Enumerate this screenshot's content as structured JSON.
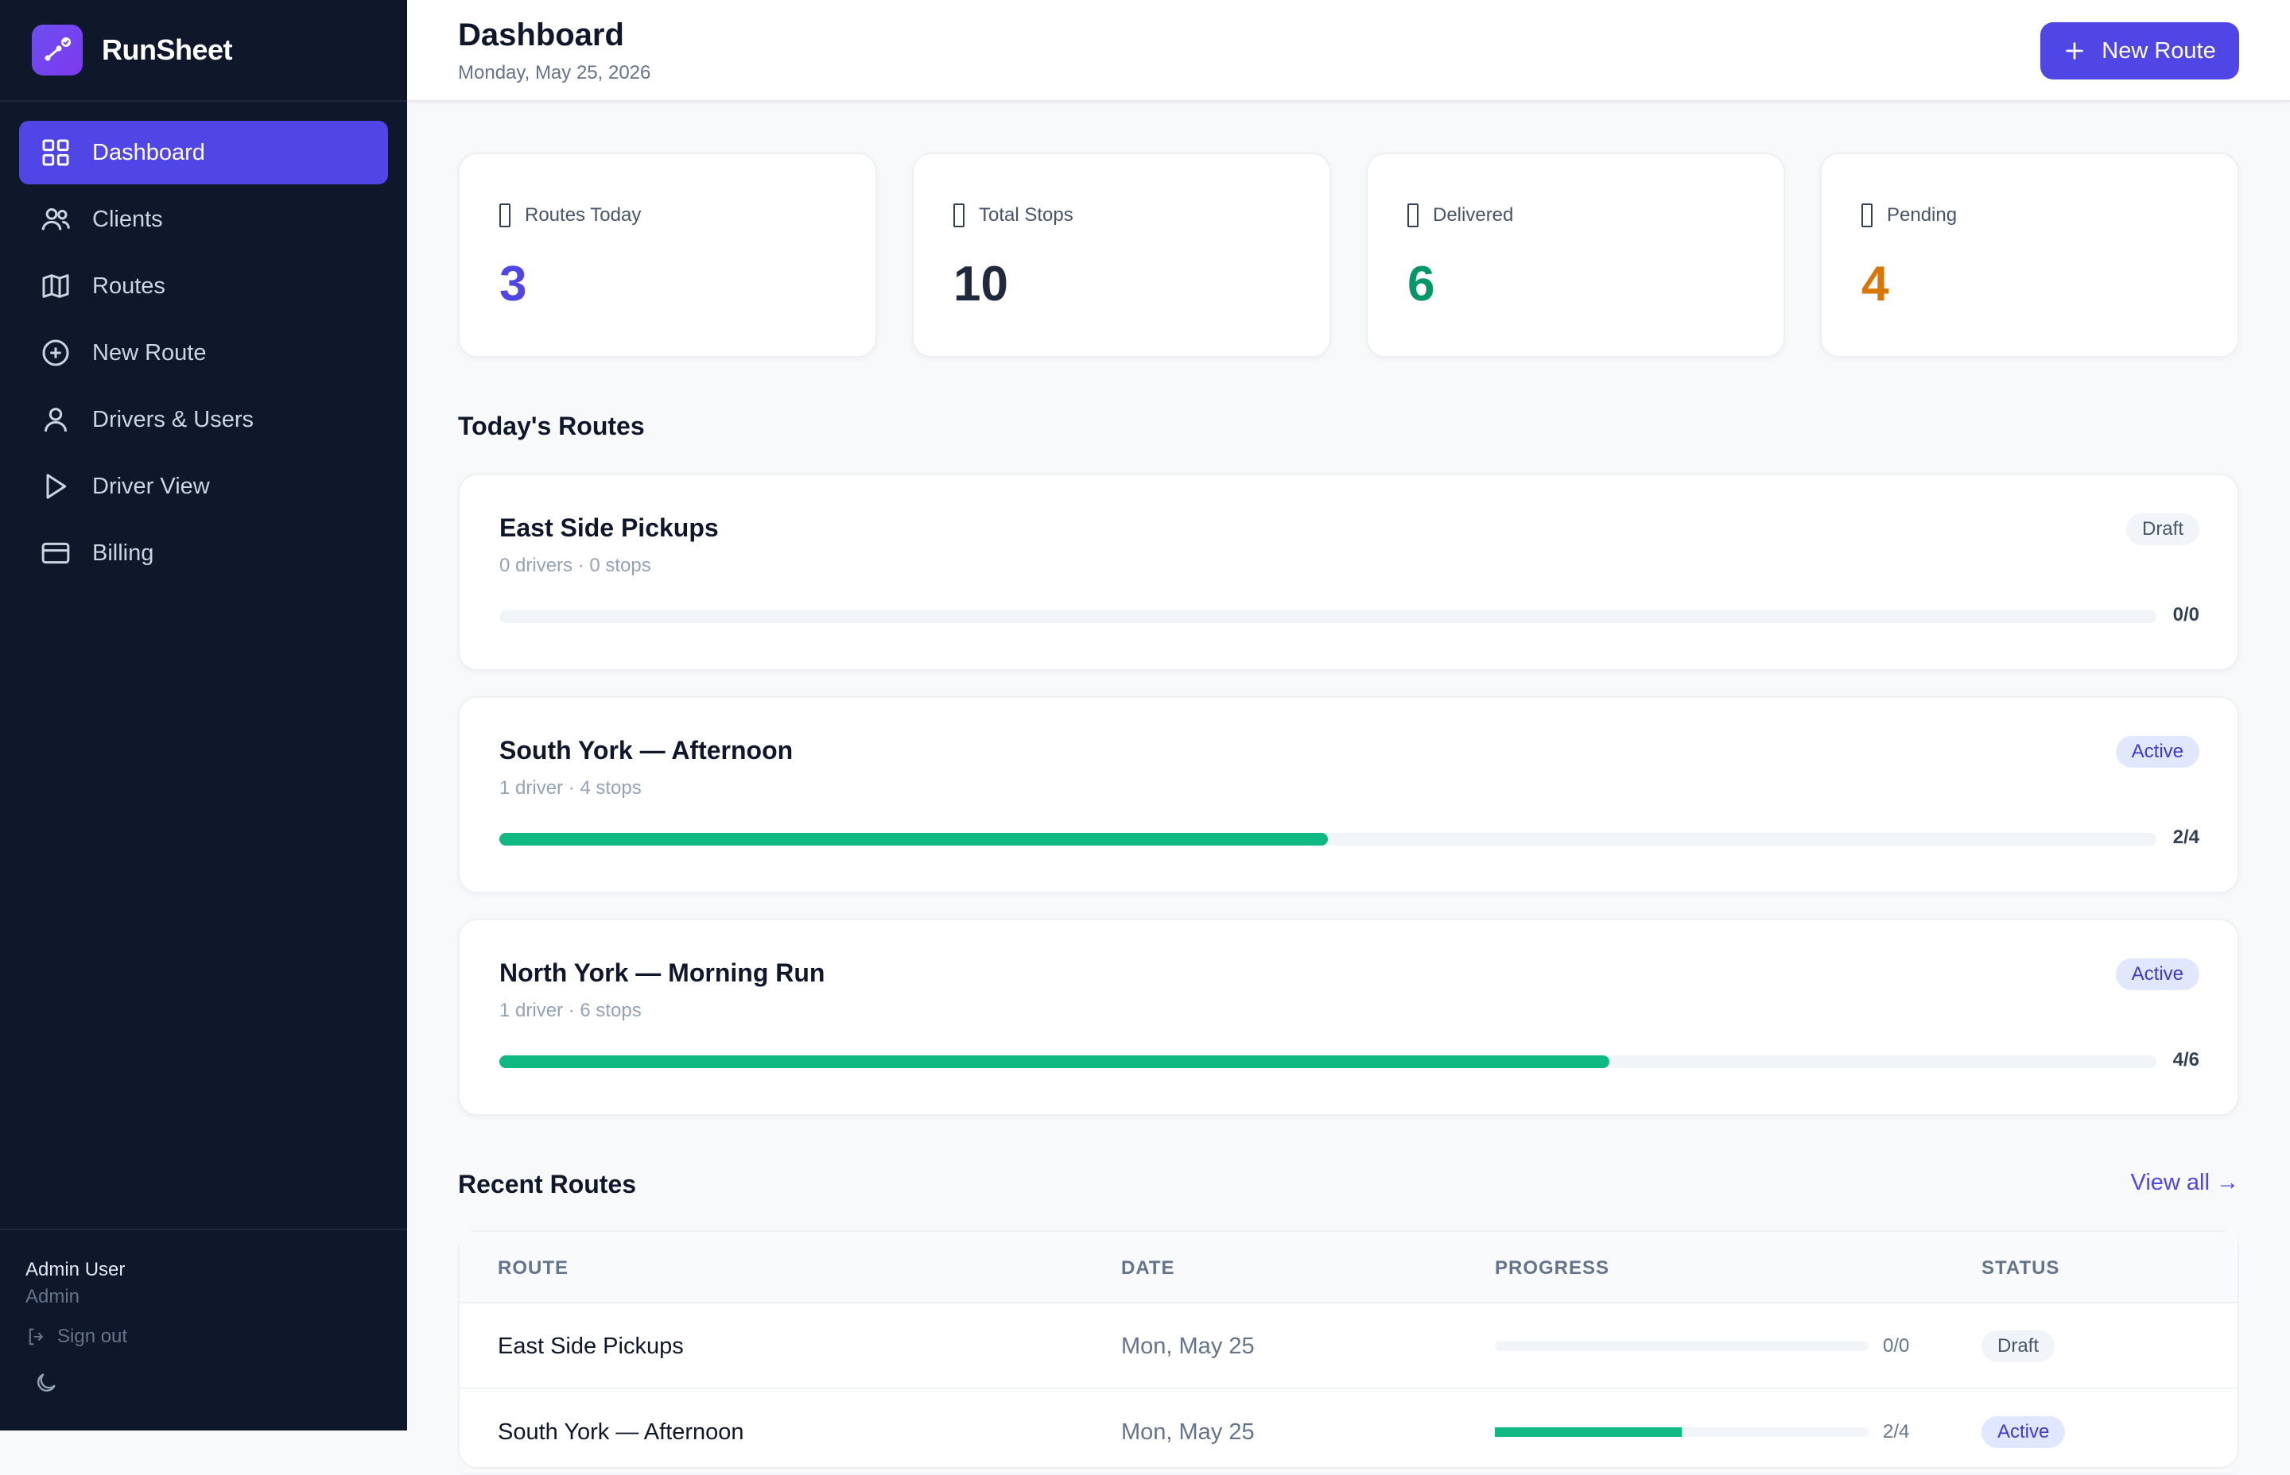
{
  "app": {
    "name": "RunSheet",
    "logo_icon": "route-check-icon",
    "accent": "#4f46e5",
    "sidebar_bg": "#0f172a"
  },
  "sidebar": {
    "items": [
      {
        "label": "Dashboard",
        "icon": "grid-icon",
        "active": true
      },
      {
        "label": "Clients",
        "icon": "users-icon",
        "active": false
      },
      {
        "label": "Routes",
        "icon": "map-icon",
        "active": false
      },
      {
        "label": "New Route",
        "icon": "plus-circle-icon",
        "active": false
      },
      {
        "label": "Drivers & Users",
        "icon": "user-icon",
        "active": false
      },
      {
        "label": "Driver View",
        "icon": "play-icon",
        "active": false
      },
      {
        "label": "Billing",
        "icon": "credit-card-icon",
        "active": false
      }
    ],
    "footer": {
      "user_name": "Admin User",
      "user_role": "Admin",
      "sign_out": "Sign out",
      "theme_icon": "moon-icon"
    }
  },
  "header": {
    "title": "Dashboard",
    "date": "Monday, May 25, 2026",
    "new_route_label": "New Route"
  },
  "stats": [
    {
      "label": "Routes Today",
      "value": "3",
      "color": "#4f46e5"
    },
    {
      "label": "Total Stops",
      "value": "10",
      "color": "#1e293b"
    },
    {
      "label": "Delivered",
      "value": "6",
      "color": "#059669"
    },
    {
      "label": "Pending",
      "value": "4",
      "color": "#d97706"
    }
  ],
  "todays_routes": {
    "title": "Today's Routes",
    "routes": [
      {
        "name": "East Side Pickups",
        "meta": "0 drivers · 0 stops",
        "status": "Draft",
        "progress_text": "0/0",
        "progress": 0
      },
      {
        "name": "South York — Afternoon",
        "meta": "1 driver · 4 stops",
        "status": "Active",
        "progress_text": "2/4",
        "progress": 0.5
      },
      {
        "name": "North York — Morning Run",
        "meta": "1 driver · 6 stops",
        "status": "Active",
        "progress_text": "4/6",
        "progress": 0.67
      }
    ]
  },
  "recent_routes": {
    "title": "Recent Routes",
    "view_all": "View all →",
    "columns": [
      "ROUTE",
      "DATE",
      "PROGRESS",
      "STATUS"
    ],
    "rows": [
      {
        "route": "East Side Pickups",
        "date": "Mon, May 25",
        "progress_text": "0/0",
        "progress": 0,
        "status": "Draft"
      },
      {
        "route": "South York — Afternoon",
        "date": "Mon, May 25",
        "progress_text": "2/4",
        "progress": 0.5,
        "status": "Active"
      }
    ]
  }
}
